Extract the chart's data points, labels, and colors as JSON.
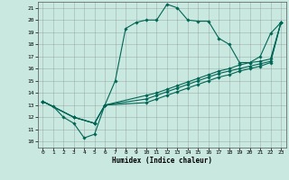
{
  "xlabel": "Humidex (Indice chaleur)",
  "xlim": [
    -0.5,
    23.5
  ],
  "ylim": [
    9.5,
    21.5
  ],
  "xticks": [
    0,
    1,
    2,
    3,
    4,
    5,
    6,
    7,
    8,
    9,
    10,
    11,
    12,
    13,
    14,
    15,
    16,
    17,
    18,
    19,
    20,
    21,
    22,
    23
  ],
  "yticks": [
    10,
    11,
    12,
    13,
    14,
    15,
    16,
    17,
    18,
    19,
    20,
    21
  ],
  "background_color": "#c8e8e0",
  "grid_color": "#888888",
  "line_color": "#006655",
  "lines": [
    {
      "x": [
        0,
        1,
        2,
        3,
        4,
        5,
        6,
        7,
        8,
        9,
        10,
        11,
        12,
        13,
        14,
        15,
        16,
        17,
        18,
        19,
        20,
        21,
        22,
        23
      ],
      "y": [
        13.3,
        12.9,
        12.0,
        11.5,
        10.3,
        10.6,
        13.0,
        15.0,
        19.3,
        19.8,
        20.0,
        20.0,
        21.3,
        21.0,
        20.0,
        19.9,
        19.9,
        18.5,
        18.0,
        16.5,
        16.5,
        17.0,
        18.9,
        19.8
      ]
    },
    {
      "x": [
        0,
        3,
        5,
        6,
        10,
        11,
        12,
        13,
        14,
        15,
        16,
        17,
        18,
        19,
        20,
        21,
        22,
        23
      ],
      "y": [
        13.3,
        12.0,
        11.5,
        13.0,
        13.8,
        14.0,
        14.3,
        14.6,
        14.9,
        15.2,
        15.5,
        15.8,
        16.0,
        16.3,
        16.5,
        16.6,
        16.8,
        19.8
      ]
    },
    {
      "x": [
        0,
        3,
        5,
        6,
        10,
        11,
        12,
        13,
        14,
        15,
        16,
        17,
        18,
        19,
        20,
        21,
        22,
        23
      ],
      "y": [
        13.3,
        12.0,
        11.5,
        13.0,
        13.5,
        13.8,
        14.1,
        14.4,
        14.7,
        15.0,
        15.3,
        15.6,
        15.8,
        16.0,
        16.2,
        16.4,
        16.6,
        19.8
      ]
    },
    {
      "x": [
        0,
        3,
        5,
        6,
        10,
        11,
        12,
        13,
        14,
        15,
        16,
        17,
        18,
        19,
        20,
        21,
        22,
        23
      ],
      "y": [
        13.3,
        12.0,
        11.5,
        13.0,
        13.2,
        13.5,
        13.8,
        14.1,
        14.4,
        14.7,
        15.0,
        15.3,
        15.5,
        15.8,
        16.0,
        16.2,
        16.5,
        19.8
      ]
    }
  ]
}
